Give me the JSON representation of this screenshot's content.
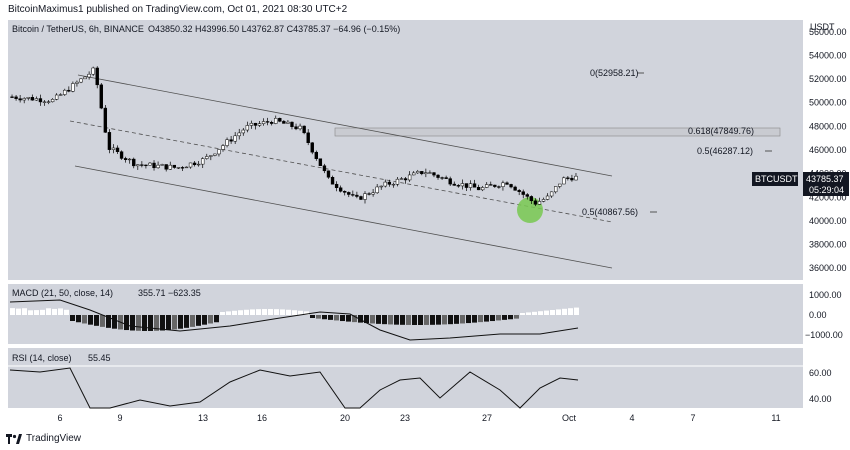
{
  "header": {
    "publish_line": "BitcoinMaximus1 published on TradingView.com, Oct 01, 2021 08:30 UTC+2"
  },
  "legend": {
    "symbol": "Bitcoin / TetherUS, 6h, BINANCE",
    "ohlc": "O43850.32  H43996.50  L43762.87  C43785.37  −64.96 (−0.15%)"
  },
  "price_axis": {
    "currency": "USDT",
    "ticks": [
      "56000.00",
      "54000.00",
      "52000.00",
      "50000.00",
      "48000.00",
      "46000.00",
      "44000.00",
      "42000.00",
      "40000.00",
      "38000.00",
      "36000.00"
    ]
  },
  "price_label": {
    "symbol": "BTCUSDT",
    "price": "43785.37",
    "countdown": "05:29:04"
  },
  "fib_labels": {
    "top": "0(52958.21)",
    "mid618": "0.618(47849.76)",
    "mid5": "0.5(46287.12)",
    "lower5": "0.5(40867.56)"
  },
  "macd": {
    "legend": "MACD (21, 50, close, 14)",
    "values": "355.71  −623.35",
    "ticks": [
      "1000.00",
      "0.00",
      "−1000.00"
    ]
  },
  "rsi": {
    "legend": "RSI (14, close)",
    "value": "55.45",
    "ticks": [
      "60.00",
      "40.00"
    ]
  },
  "time_axis": {
    "labels": [
      "6",
      "9",
      "13",
      "16",
      "20",
      "23",
      "27",
      "Oct",
      "4",
      "7",
      "11"
    ]
  },
  "footer": {
    "brand": "TradingView"
  },
  "colors": {
    "bg": "#d1d4dc",
    "channel": "#505050",
    "candle": "#000000",
    "candle_up": "#ffffff",
    "highlight": "#78c850",
    "resist_zone": "#c9cbd1"
  },
  "chart_data": {
    "type": "line",
    "title": "Bitcoin / TetherUS, 6h, BINANCE",
    "x_labels": [
      "6",
      "9",
      "13",
      "16",
      "20",
      "23",
      "27",
      "Oct",
      "4",
      "7",
      "11"
    ],
    "ylim": [
      35000,
      57000
    ],
    "approx_close_path": [
      [
        0,
        50500
      ],
      [
        3,
        50200
      ],
      [
        6,
        52800
      ],
      [
        7,
        46200
      ],
      [
        9,
        44800
      ],
      [
        12,
        44500
      ],
      [
        14,
        45200
      ],
      [
        17,
        47900
      ],
      [
        19,
        48500
      ],
      [
        21,
        47800
      ],
      [
        23,
        43500
      ],
      [
        25,
        41800
      ],
      [
        27,
        43000
      ],
      [
        30,
        44200
      ],
      [
        32,
        43300
      ],
      [
        34,
        42700
      ],
      [
        36,
        43300
      ],
      [
        38,
        41500
      ],
      [
        39,
        42000
      ],
      [
        40,
        43500
      ],
      [
        41,
        43785.37
      ]
    ],
    "series": [
      {
        "name": "BTCUSDT",
        "values": [
          50500,
          52800,
          44800,
          45200,
          48500,
          43500,
          41800,
          44200,
          42700,
          41500,
          43785.37
        ]
      }
    ],
    "fib_levels": [
      {
        "label": "0(52958.21)",
        "value": 52958.21
      },
      {
        "label": "0.618(47849.76)",
        "value": 47849.76
      },
      {
        "label": "0.5(46287.12)",
        "value": 46287.12
      },
      {
        "label": "0.5(40867.56)",
        "value": 40867.56
      }
    ],
    "last_price": 43785.37,
    "grid": false
  }
}
